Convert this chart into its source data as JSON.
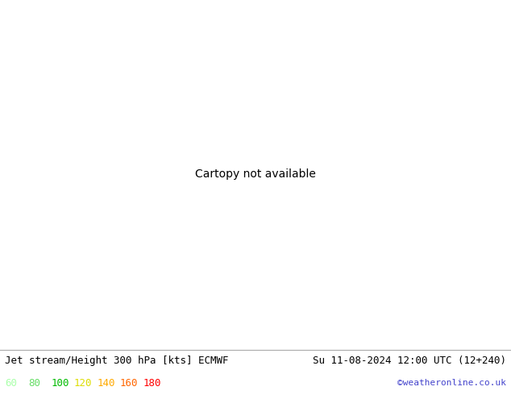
{
  "title_left": "Jet stream/Height 300 hPa [kts] ECMWF",
  "title_right": "Su 11-08-2024 12:00 UTC (12+240)",
  "credit": "©weatheronline.co.uk",
  "legend_values": [
    "60",
    "80",
    "100",
    "120",
    "140",
    "160",
    "180"
  ],
  "legend_colors": [
    "#aaffaa",
    "#66dd66",
    "#00bb00",
    "#dddd00",
    "#ffaa00",
    "#ff6600",
    "#ff0000"
  ],
  "background_land": "#d8f0d8",
  "background_sea": "#e8f4e8",
  "background_gray": "#c0c0c0",
  "contour_color": "#000000",
  "title_fontsize": 9,
  "credit_color": "#4444cc",
  "figsize": [
    6.34,
    4.9
  ],
  "dpi": 100,
  "lon_min": -30,
  "lon_max": 50,
  "lat_min": 30,
  "lat_max": 75
}
